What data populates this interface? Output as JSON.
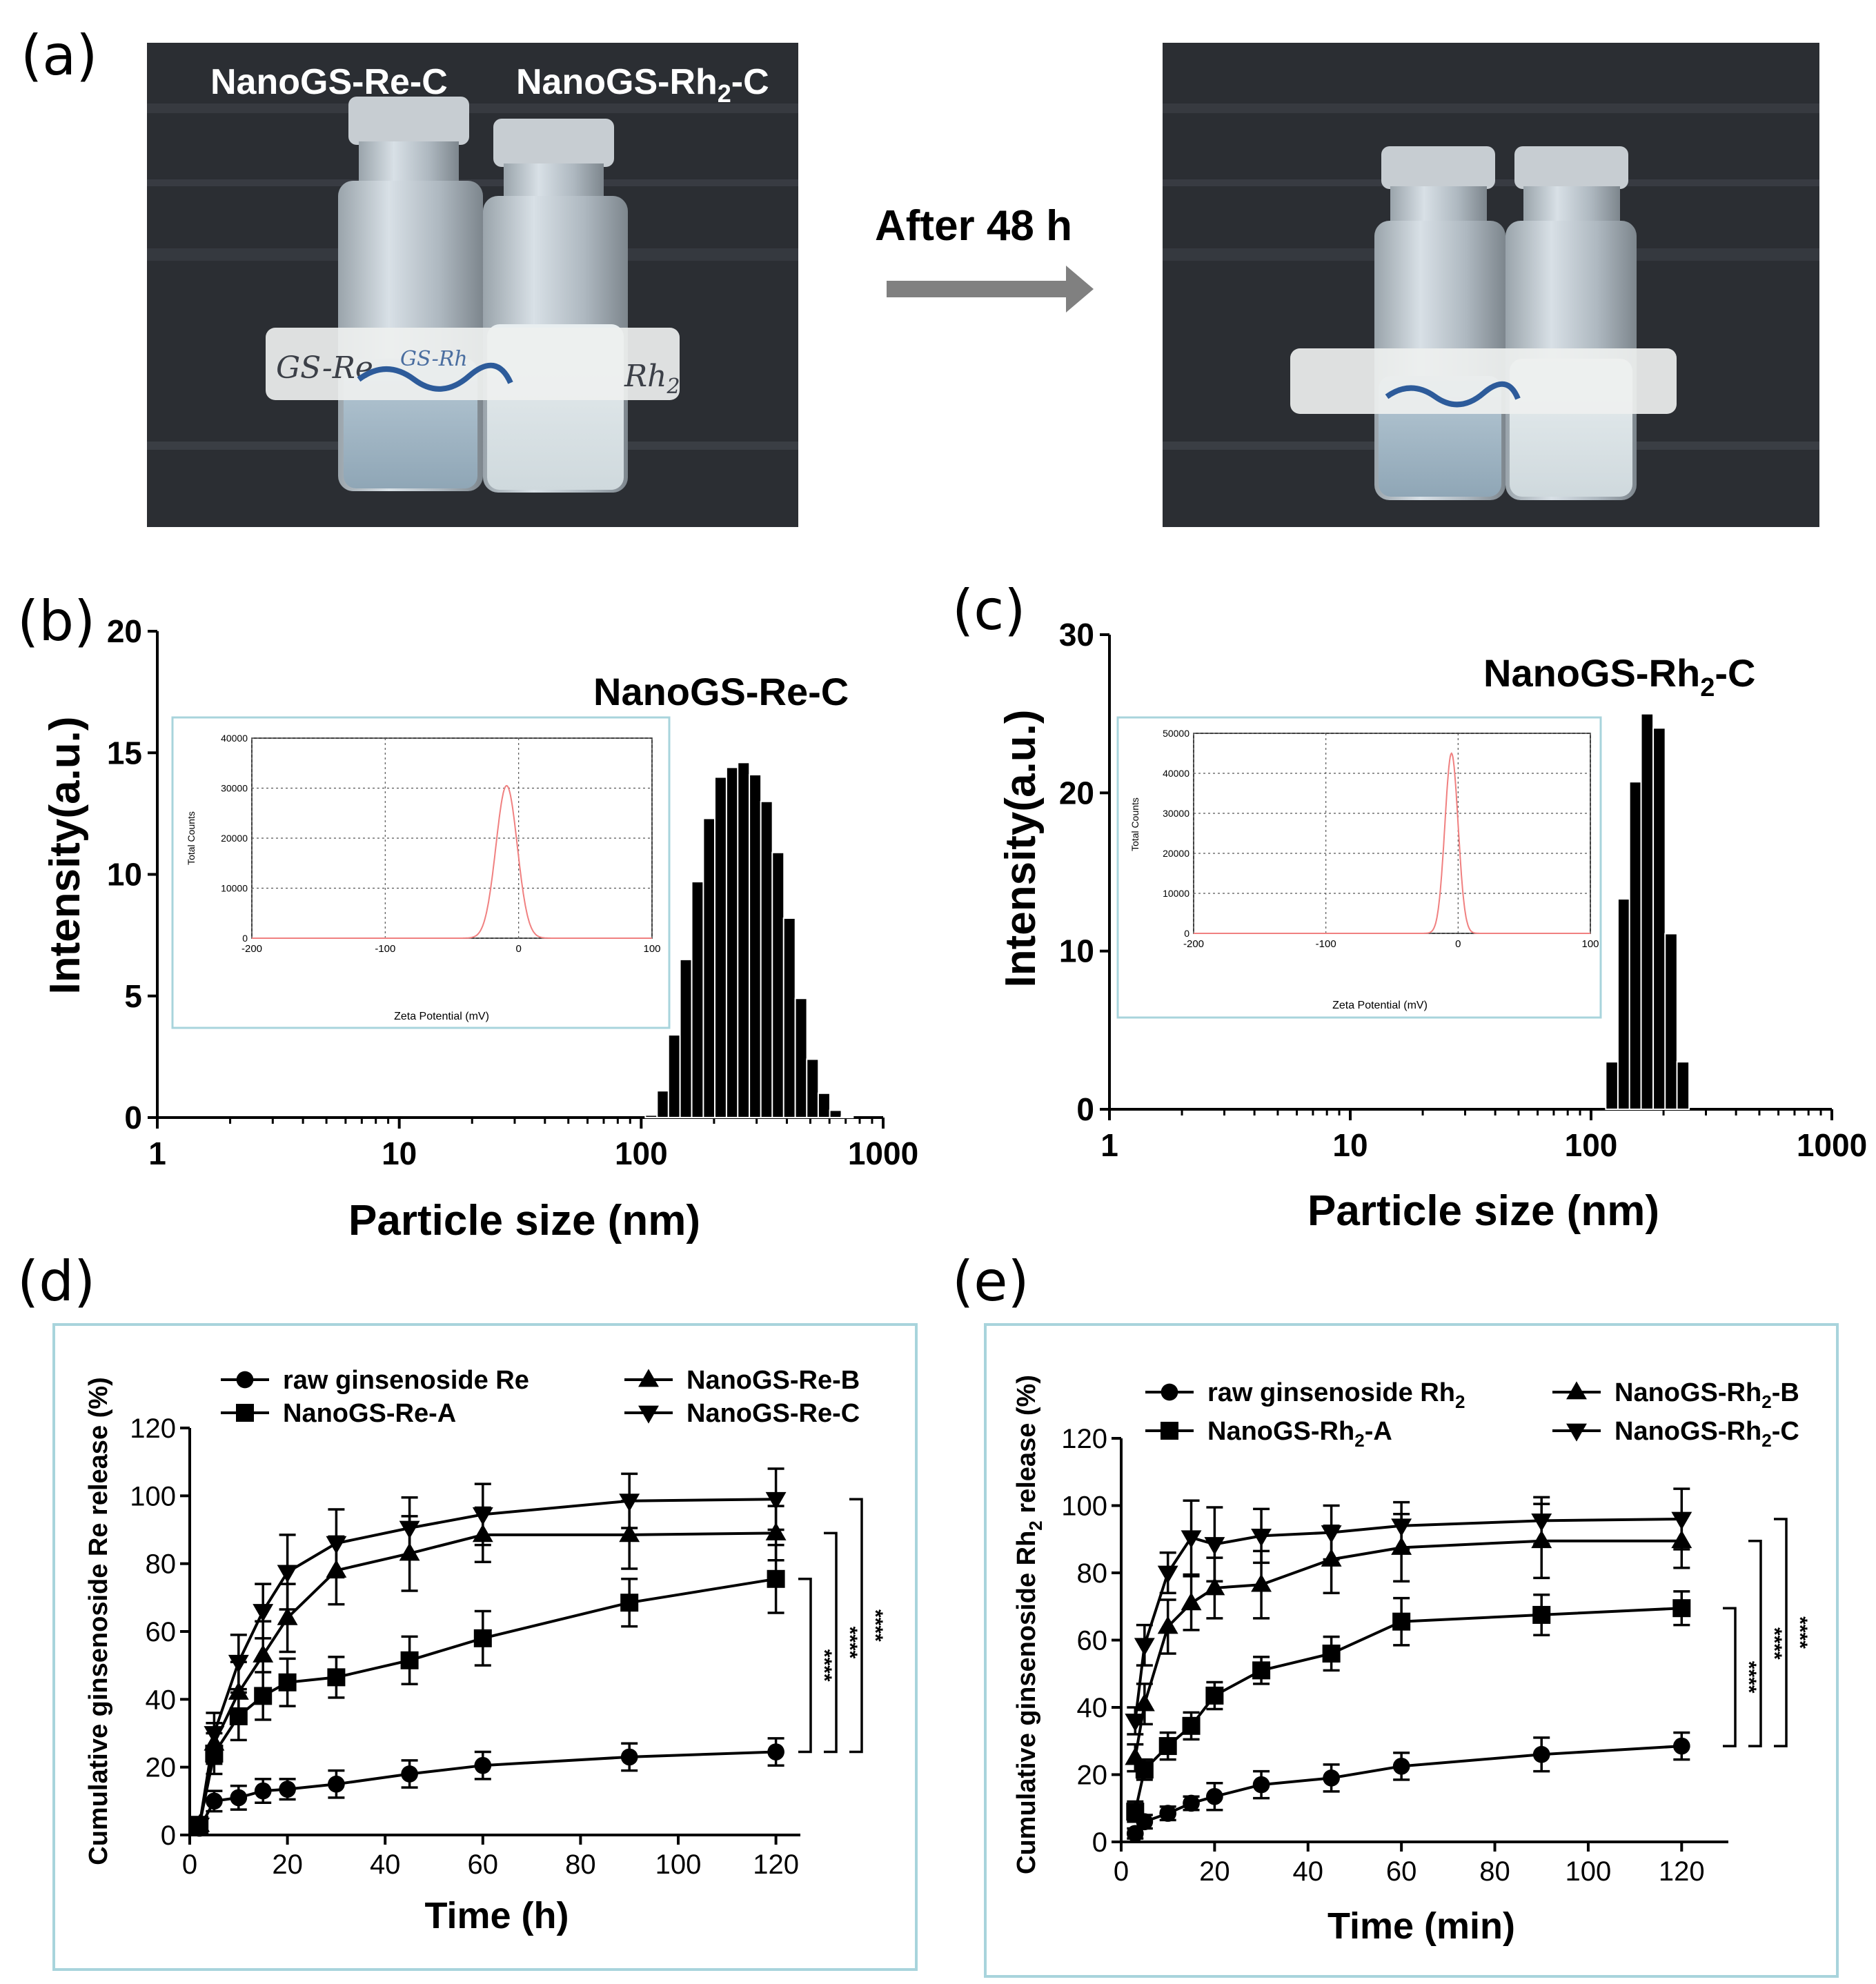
{
  "panels": {
    "a": "(a)",
    "b": "(b)",
    "c": "(c)",
    "d": "(d)",
    "e": "(e)"
  },
  "photo": {
    "label_left": "NanoGS-Re-C",
    "label_right_pre": "NanoGS-Rh",
    "label_right_sub": "2",
    "label_right_post": "-C",
    "arrow_text": "After 48 h",
    "vial_label_left": "GS-Re",
    "vial_label_mid": "GS-Rh",
    "vial_label_right": "Rh",
    "vial_label_right_sub": "2"
  },
  "colors": {
    "bars": "#000000",
    "zeta": "#f08080",
    "frame": "#a8d4dc",
    "arrow": "#808080"
  },
  "chart_data": [
    {
      "id": "b",
      "type": "bar",
      "title": "NanoGS-Re-C",
      "xlabel": "Particle size (nm)",
      "ylabel": "Intensity(a.u.)",
      "xscale": "log",
      "xlim": [
        1,
        1000
      ],
      "ylim": [
        0,
        20
      ],
      "xticks": [
        "1",
        "10",
        "100",
        "1000"
      ],
      "yticks": [
        "0",
        "5",
        "10",
        "15",
        "20"
      ],
      "bins_x": [
        110,
        123,
        137,
        153,
        171,
        191,
        213,
        238,
        265,
        296,
        330,
        368,
        410,
        458,
        511,
        570,
        636,
        710
      ],
      "values": [
        0.1,
        1.1,
        3.4,
        6.5,
        9.7,
        12.3,
        14.0,
        14.4,
        14.6,
        14.1,
        13.0,
        10.9,
        8.2,
        4.9,
        2.4,
        1.0,
        0.3,
        0.05
      ],
      "inset": {
        "type": "line",
        "xlabel": "Zeta Potential (mV)",
        "ylabel": "Total Counts",
        "xlim": [
          -200,
          100
        ],
        "ylim": [
          0,
          40000
        ],
        "xticks": [
          "-200",
          "-100",
          "0",
          "100"
        ],
        "yticks": [
          "0",
          "10000",
          "20000",
          "30000",
          "40000"
        ],
        "peak_center": -9,
        "peak_height": 30500,
        "peak_width": 8
      }
    },
    {
      "id": "c",
      "type": "bar",
      "title_pre": "NanoGS-Rh",
      "title_sub": "2",
      "title_post": "-C",
      "xlabel": "Particle size (nm)",
      "ylabel": "Intensity(a.u.)",
      "xscale": "log",
      "xlim": [
        1,
        1000
      ],
      "ylim": [
        0,
        30
      ],
      "xticks": [
        "1",
        "10",
        "100",
        "1000"
      ],
      "yticks": [
        "0",
        "10",
        "20",
        "30"
      ],
      "bins_x": [
        122,
        137,
        153,
        171,
        192,
        215,
        241,
        270,
        302
      ],
      "values": [
        3.0,
        13.3,
        20.7,
        25.0,
        24.1,
        11.1,
        3.0,
        0.0,
        0.0
      ],
      "inset": {
        "type": "line",
        "xlabel": "Zeta Potential (mV)",
        "ylabel": "Total Counts",
        "xlim": [
          -200,
          100
        ],
        "ylim": [
          0,
          50000
        ],
        "xticks": [
          "-200",
          "-100",
          "0",
          "100"
        ],
        "yticks": [
          "0",
          "10000",
          "20000",
          "30000",
          "40000",
          "50000"
        ],
        "peak_center": -5,
        "peak_height": 45000,
        "peak_width": 5
      }
    },
    {
      "id": "d",
      "type": "line",
      "xlabel": "Time (h)",
      "ylabel": "Cumulative ginsenoside Re release (%)",
      "xlim": [
        0,
        125
      ],
      "ylim": [
        0,
        120
      ],
      "xticks": [
        0,
        20,
        40,
        60,
        80,
        100,
        120
      ],
      "yticks": [
        0,
        20,
        40,
        60,
        80,
        100,
        120
      ],
      "x": [
        2,
        5,
        10,
        15,
        20,
        30,
        45,
        60,
        90,
        120
      ],
      "series": [
        {
          "name": "raw ginsenoside Re",
          "marker": "circle",
          "values": [
            2,
            10,
            11,
            13,
            13.5,
            15,
            18,
            20.5,
            23,
            24.5
          ],
          "errors": [
            2,
            3,
            3.5,
            3.5,
            3,
            4,
            4,
            4,
            4,
            4
          ]
        },
        {
          "name": "NanoGS-Re-A",
          "marker": "square",
          "values": [
            3,
            24,
            35,
            41,
            45,
            46.5,
            51.5,
            58,
            68.5,
            75.5
          ],
          "errors": [
            2,
            6,
            7,
            7,
            7,
            6,
            7,
            8,
            7,
            10
          ]
        },
        {
          "name": "NanoGS-Re-B",
          "marker": "triangle-up",
          "values": [
            3,
            27,
            42,
            53,
            64,
            78,
            83,
            88.5,
            88.5,
            89
          ],
          "errors": [
            2,
            6,
            9,
            10,
            10,
            10,
            11,
            8,
            10,
            8
          ]
        },
        {
          "name": "NanoGS-Re-C",
          "marker": "triangle-down",
          "values": [
            3,
            30,
            51,
            66,
            77.5,
            86,
            90.5,
            94.5,
            98.5,
            99
          ],
          "errors": [
            2,
            6,
            8,
            8,
            11,
            10,
            9,
            9,
            8,
            9
          ]
        }
      ],
      "significance": [
        "****",
        "****",
        "****"
      ],
      "legend": "top"
    },
    {
      "id": "e",
      "type": "line",
      "xlabel": "Time (min)",
      "ylabel_pre": "Cumulative ginsenoside Rh",
      "ylabel_sub": "2",
      "ylabel_post": " release (%)",
      "xlim": [
        0,
        130
      ],
      "ylim": [
        0,
        120
      ],
      "xticks": [
        0,
        20,
        40,
        60,
        80,
        100,
        120
      ],
      "yticks": [
        0,
        20,
        40,
        60,
        80,
        100,
        120
      ],
      "x": [
        3,
        5,
        10,
        15,
        20,
        30,
        45,
        60,
        90,
        120
      ],
      "series": [
        {
          "name_pre": "raw ginsenoside Rh",
          "name_sub": "2",
          "name_post": "",
          "marker": "circle",
          "values": [
            2.5,
            6,
            8.5,
            11.5,
            13.5,
            17,
            19,
            22.5,
            26,
            28.5
          ],
          "errors": [
            1.5,
            2,
            2,
            2,
            4,
            4,
            4,
            4,
            5,
            4
          ]
        },
        {
          "name_pre": "NanoGS-Rh",
          "name_sub": "2",
          "name_post": "-A",
          "marker": "square",
          "values": [
            9,
            21.5,
            28.5,
            34.5,
            43.5,
            51,
            56,
            65.5,
            67.5,
            69.5
          ],
          "errors": [
            3,
            3,
            4,
            4,
            4,
            4,
            5,
            7,
            6,
            5
          ]
        },
        {
          "name_pre": "NanoGS-Rh",
          "name_sub": "2",
          "name_post": "-B",
          "marker": "triangle-up",
          "values": [
            25,
            41,
            64,
            71,
            75.5,
            76.5,
            84,
            87.5,
            89.5,
            89.5
          ],
          "errors": [
            4,
            6,
            8,
            8,
            9,
            10,
            10,
            10,
            11,
            8
          ]
        },
        {
          "name_pre": "NanoGS-Rh",
          "name_sub": "2",
          "name_post": "-C",
          "marker": "triangle-down",
          "values": [
            36,
            58.5,
            80,
            90.5,
            88.5,
            91,
            92,
            94,
            95.5,
            96
          ],
          "errors": [
            4,
            6,
            6,
            11,
            11,
            8,
            8,
            7,
            7,
            9
          ]
        }
      ],
      "significance": [
        "****",
        "****",
        "****"
      ],
      "legend": "top"
    }
  ]
}
